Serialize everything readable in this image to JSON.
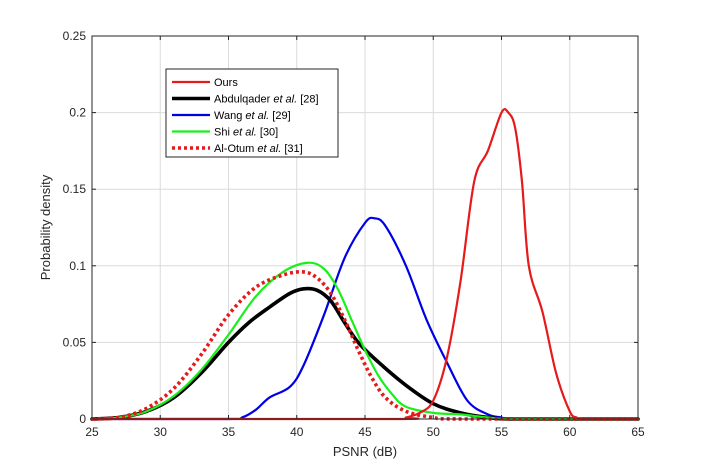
{
  "chart_data": {
    "type": "line",
    "title": "",
    "xlabel": "PSNR (dB)",
    "ylabel": "Probability density",
    "xlim": [
      25,
      65
    ],
    "ylim": [
      0,
      0.25
    ],
    "xticks": [
      25,
      30,
      35,
      40,
      45,
      50,
      55,
      60,
      65
    ],
    "yticks": [
      0,
      0.05,
      0.1,
      0.15,
      0.2,
      0.25
    ],
    "xtick_labels": [
      "25",
      "30",
      "35",
      "40",
      "45",
      "50",
      "55",
      "60",
      "65"
    ],
    "ytick_labels": [
      "0",
      "0.05",
      "0.1",
      "0.15",
      "0.2",
      "0.25"
    ],
    "grid": true,
    "legend_position": "top-left",
    "series": [
      {
        "name": "Ours",
        "name_parts": [
          {
            "text": "Ours",
            "italic": false
          }
        ],
        "color": "#e61a1a",
        "line_style": "solid",
        "line_weight": "medium",
        "points": [
          [
            25,
            0
          ],
          [
            47,
            0
          ],
          [
            48,
            0.001
          ],
          [
            49,
            0.004
          ],
          [
            50,
            0.012
          ],
          [
            51,
            0.04
          ],
          [
            52,
            0.09
          ],
          [
            53,
            0.155
          ],
          [
            54,
            0.175
          ],
          [
            55,
            0.2
          ],
          [
            55.5,
            0.2
          ],
          [
            56,
            0.19
          ],
          [
            56.5,
            0.155
          ],
          [
            57,
            0.1
          ],
          [
            58,
            0.07
          ],
          [
            59,
            0.03
          ],
          [
            60,
            0.005
          ],
          [
            60.5,
            0.001
          ],
          [
            61,
            0
          ],
          [
            65,
            0
          ]
        ]
      },
      {
        "name": "Abdulqader et al. [28]",
        "name_parts": [
          {
            "text": "Abdulqader ",
            "italic": false
          },
          {
            "text": "et al.",
            "italic": true
          },
          {
            "text": " [28]",
            "italic": false
          }
        ],
        "color": "#000000",
        "line_style": "solid",
        "line_weight": "thick",
        "points": [
          [
            25,
            0
          ],
          [
            27,
            0.001
          ],
          [
            29,
            0.005
          ],
          [
            31,
            0.014
          ],
          [
            33,
            0.03
          ],
          [
            35,
            0.05
          ],
          [
            36.5,
            0.063
          ],
          [
            38,
            0.073
          ],
          [
            39.5,
            0.082
          ],
          [
            40.5,
            0.085
          ],
          [
            41.5,
            0.084
          ],
          [
            42.5,
            0.077
          ],
          [
            43.5,
            0.063
          ],
          [
            44.5,
            0.05
          ],
          [
            46,
            0.037
          ],
          [
            48,
            0.022
          ],
          [
            50,
            0.01
          ],
          [
            52,
            0.004
          ],
          [
            54,
            0.001
          ],
          [
            56,
            0
          ],
          [
            65,
            0
          ]
        ]
      },
      {
        "name": "Wang et al. [29]",
        "name_parts": [
          {
            "text": "Wang ",
            "italic": false
          },
          {
            "text": "et al.",
            "italic": true
          },
          {
            "text": " [29]",
            "italic": false
          }
        ],
        "color": "#0000e6",
        "line_style": "solid",
        "line_weight": "medium",
        "points": [
          [
            25,
            0
          ],
          [
            35,
            0
          ],
          [
            36,
            0.001
          ],
          [
            37,
            0.006
          ],
          [
            38,
            0.014
          ],
          [
            39.5,
            0.021
          ],
          [
            40.5,
            0.035
          ],
          [
            42,
            0.068
          ],
          [
            43.5,
            0.105
          ],
          [
            45,
            0.128
          ],
          [
            45.7,
            0.131
          ],
          [
            46.5,
            0.126
          ],
          [
            48,
            0.1
          ],
          [
            49.5,
            0.065
          ],
          [
            51,
            0.037
          ],
          [
            52.5,
            0.012
          ],
          [
            54,
            0.003
          ],
          [
            55,
            0.001
          ],
          [
            56,
            0
          ],
          [
            65,
            0
          ]
        ]
      },
      {
        "name": "Shi et al. [30]",
        "name_parts": [
          {
            "text": "Shi ",
            "italic": false
          },
          {
            "text": "et al.",
            "italic": true
          },
          {
            "text": " [30]",
            "italic": false
          }
        ],
        "color": "#1aef1a",
        "line_style": "solid",
        "line_weight": "medium",
        "points": [
          [
            25,
            0
          ],
          [
            27,
            0.001
          ],
          [
            29,
            0.005
          ],
          [
            31,
            0.015
          ],
          [
            33,
            0.032
          ],
          [
            35,
            0.055
          ],
          [
            37,
            0.08
          ],
          [
            39,
            0.096
          ],
          [
            40.8,
            0.102
          ],
          [
            42,
            0.098
          ],
          [
            43,
            0.085
          ],
          [
            44,
            0.065
          ],
          [
            45,
            0.045
          ],
          [
            46,
            0.028
          ],
          [
            47,
            0.016
          ],
          [
            48,
            0.008
          ],
          [
            50,
            0.004
          ],
          [
            52,
            0.003
          ],
          [
            54,
            0.001
          ],
          [
            56,
            0
          ],
          [
            65,
            0
          ]
        ]
      },
      {
        "name": "Al-Otum et al. [31]",
        "name_parts": [
          {
            "text": "Al-Otum ",
            "italic": false
          },
          {
            "text": "et al.",
            "italic": true
          },
          {
            "text": " [31]",
            "italic": false
          }
        ],
        "color": "#e61a1a",
        "line_style": "dotted",
        "line_weight": "thick",
        "points": [
          [
            25,
            0
          ],
          [
            27,
            0.001
          ],
          [
            29,
            0.007
          ],
          [
            31,
            0.02
          ],
          [
            33,
            0.042
          ],
          [
            35,
            0.068
          ],
          [
            37,
            0.086
          ],
          [
            39,
            0.094
          ],
          [
            40.5,
            0.096
          ],
          [
            41.5,
            0.092
          ],
          [
            42.5,
            0.082
          ],
          [
            43.5,
            0.065
          ],
          [
            44.5,
            0.045
          ],
          [
            45.5,
            0.027
          ],
          [
            46.5,
            0.014
          ],
          [
            48,
            0.005
          ],
          [
            50,
            0.001
          ],
          [
            52,
            0
          ],
          [
            65,
            0
          ]
        ]
      }
    ]
  }
}
